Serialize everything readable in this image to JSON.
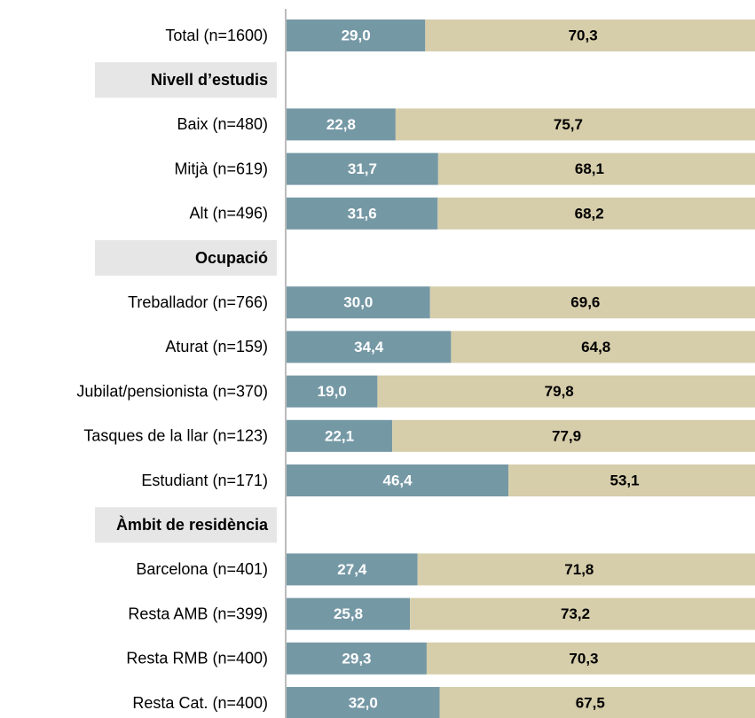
{
  "chart_data": {
    "type": "stacked-bar",
    "categories": [
      "Total (n=1600)",
      "Nivell d’estudis",
      "Baix (n=480)",
      "Mitjà (n=619)",
      "Alt (n=496)",
      "Ocupació",
      "Treballador (n=766)",
      "Aturat (n=159)",
      "Jubilat/pensionista (n=370)",
      "Tasques de la llar (n=123)",
      "Estudiant (n=171)",
      "Àmbit de residència",
      "Barcelona (n=401)",
      "Resta AMB (n=399)",
      "Resta RMB (n=400)",
      "Resta Cat. (n=400)"
    ],
    "series": [
      {
        "color": "#7598a5",
        "label_color": "#ffffff",
        "values": [
          29.0,
          null,
          22.8,
          31.7,
          31.6,
          null,
          30.0,
          34.4,
          19.0,
          22.1,
          46.4,
          null,
          27.4,
          25.8,
          29.3,
          32.0
        ],
        "value_labels": [
          "29,0",
          null,
          "22,8",
          "31,7",
          "31,6",
          null,
          "30,0",
          "34,4",
          "19,0",
          "22,1",
          "46,4",
          null,
          "27,4",
          "25,8",
          "29,3",
          "32,0"
        ]
      },
      {
        "color": "#d6cdaa",
        "label_color": "#000000",
        "values": [
          70.3,
          null,
          75.7,
          68.1,
          68.2,
          null,
          69.6,
          64.8,
          79.8,
          77.9,
          53.1,
          null,
          71.8,
          73.2,
          70.3,
          67.5
        ],
        "value_labels": [
          "70,3",
          null,
          "75,7",
          "68,1",
          "68,2",
          null,
          "69,6",
          "64,8",
          "79,8",
          "77,9",
          "53,1",
          null,
          "71,8",
          "73,2",
          "70,3",
          "67,5"
        ]
      }
    ],
    "xlim": [
      0,
      100
    ]
  }
}
